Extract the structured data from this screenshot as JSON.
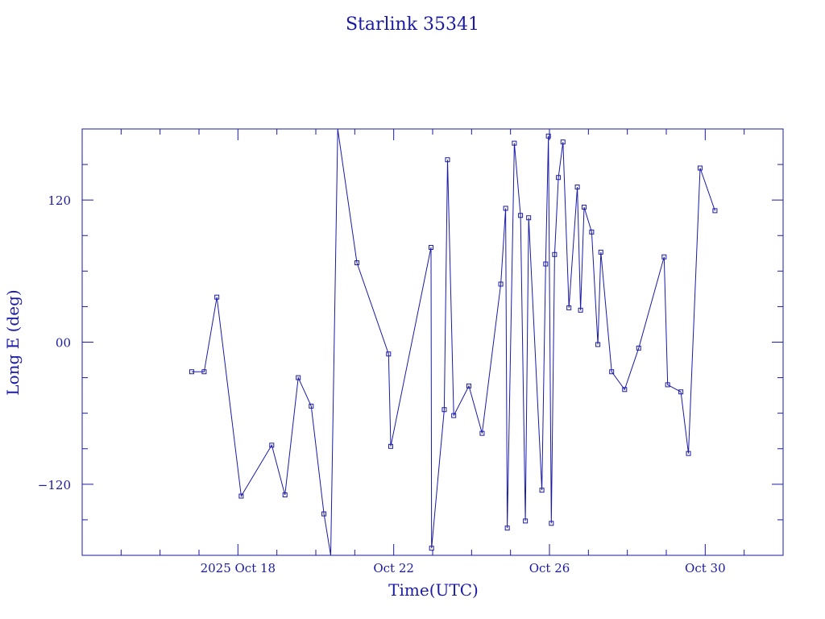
{
  "chart_data": {
    "type": "line",
    "title": "Starlink 35341",
    "xlabel": "Time(UTC)",
    "ylabel": "Long E (deg)",
    "ylim": [
      -180,
      180
    ],
    "xlim_days": [
      "2025-10-14",
      "2025-11-01"
    ],
    "yticks": [
      {
        "value": 120,
        "label": "120"
      },
      {
        "value": 0,
        "label": "00"
      },
      {
        "value": -120,
        "label": "−120"
      }
    ],
    "xticks": [
      {
        "date": "2025-10-18",
        "label": "2025 Oct 18"
      },
      {
        "date": "2025-10-22",
        "label": "Oct 22"
      },
      {
        "date": "2025-10-26",
        "label": "Oct 26"
      },
      {
        "date": "2025-10-30",
        "label": "Oct 30"
      }
    ],
    "grid": false,
    "colors": {
      "line": "#1a1aa6",
      "text": "#1a1aa6"
    },
    "series": [
      {
        "values": [
          {
            "t": "2025-10-16 19:30",
            "lon": -25
          },
          {
            "t": "2025-10-17 03:10",
            "lon": -25
          },
          {
            "t": "2025-10-17 11:00",
            "lon": 38
          },
          {
            "t": "2025-10-18 02:00",
            "lon": -130
          },
          {
            "t": "2025-10-18 20:50",
            "lon": -87
          },
          {
            "t": "2025-10-19 05:00",
            "lon": -129
          },
          {
            "t": "2025-10-19 13:10",
            "lon": -30
          },
          {
            "t": "2025-10-19 21:10",
            "lon": -54
          },
          {
            "t": "2025-10-20 05:00",
            "lon": -145
          },
          {
            "t": "2025-10-20 09:10",
            "lon": -180
          },
          {
            "t": "2025-10-20 13:30",
            "lon": 180
          },
          {
            "t": "2025-10-21 01:20",
            "lon": 67
          },
          {
            "t": "2025-10-21 20:50",
            "lon": -10
          },
          {
            "t": "2025-10-21 22:10",
            "lon": -88
          },
          {
            "t": "2025-10-22 23:00",
            "lon": 80
          },
          {
            "t": "2025-10-22 23:20",
            "lon": -174
          },
          {
            "t": "2025-10-23 07:10",
            "lon": -57
          },
          {
            "t": "2025-10-23 09:10",
            "lon": 154
          },
          {
            "t": "2025-10-23 13:00",
            "lon": -62
          },
          {
            "t": "2025-10-23 22:20",
            "lon": -37
          },
          {
            "t": "2025-10-24 06:30",
            "lon": -77
          },
          {
            "t": "2025-10-24 18:00",
            "lon": 49
          },
          {
            "t": "2025-10-24 21:00",
            "lon": 113
          },
          {
            "t": "2025-10-24 22:00",
            "lon": -157
          },
          {
            "t": "2025-10-25 02:20",
            "lon": 168
          },
          {
            "t": "2025-10-25 06:10",
            "lon": 107
          },
          {
            "t": "2025-10-25 09:10",
            "lon": -151
          },
          {
            "t": "2025-10-25 11:10",
            "lon": 105
          },
          {
            "t": "2025-10-25 19:20",
            "lon": -125
          },
          {
            "t": "2025-10-25 21:40",
            "lon": 66
          },
          {
            "t": "2025-10-25 23:20",
            "lon": 174
          },
          {
            "t": "2025-10-26 01:10",
            "lon": -153
          },
          {
            "t": "2025-10-26 03:10",
            "lon": 74
          },
          {
            "t": "2025-10-26 05:30",
            "lon": 139
          },
          {
            "t": "2025-10-26 08:20",
            "lon": 169
          },
          {
            "t": "2025-10-26 12:00",
            "lon": 29
          },
          {
            "t": "2025-10-26 17:10",
            "lon": 131
          },
          {
            "t": "2025-10-26 19:10",
            "lon": 27
          },
          {
            "t": "2025-10-26 21:20",
            "lon": 114
          },
          {
            "t": "2025-10-27 02:00",
            "lon": 93
          },
          {
            "t": "2025-10-27 05:50",
            "lon": -2
          },
          {
            "t": "2025-10-27 07:40",
            "lon": 76
          },
          {
            "t": "2025-10-27 14:20",
            "lon": -25
          },
          {
            "t": "2025-10-27 22:20",
            "lon": -40
          },
          {
            "t": "2025-10-28 07:00",
            "lon": -5
          },
          {
            "t": "2025-10-28 22:40",
            "lon": 72
          },
          {
            "t": "2025-10-29 00:50",
            "lon": -36
          },
          {
            "t": "2025-10-29 09:00",
            "lon": -42
          },
          {
            "t": "2025-10-29 13:40",
            "lon": -94
          },
          {
            "t": "2025-10-29 20:50",
            "lon": 147
          },
          {
            "t": "2025-10-30 06:00",
            "lon": 111
          }
        ]
      }
    ]
  }
}
